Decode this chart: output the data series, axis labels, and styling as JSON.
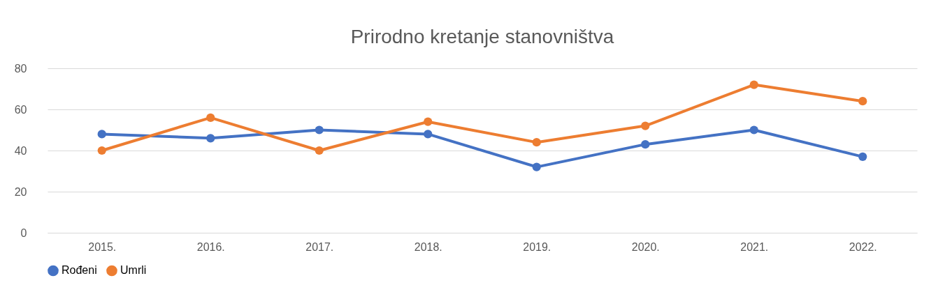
{
  "chart_data": {
    "type": "line",
    "title": "Prirodno kretanje stanovništva",
    "categories": [
      "2015.",
      "2016.",
      "2017.",
      "2018.",
      "2019.",
      "2020.",
      "2021.",
      "2022."
    ],
    "series": [
      {
        "name": "Rođeni",
        "color": "#4472c4",
        "values": [
          48,
          46,
          50,
          48,
          32,
          43,
          50,
          37
        ]
      },
      {
        "name": "Umrli",
        "color": "#ed7d31",
        "values": [
          40,
          56,
          40,
          54,
          44,
          52,
          72,
          64
        ]
      }
    ],
    "ylim": [
      0,
      80
    ],
    "yticks": [
      0,
      20,
      40,
      60,
      80
    ],
    "grid": "y",
    "legend": "bottom",
    "marker": "circle",
    "line_style": "solid"
  }
}
